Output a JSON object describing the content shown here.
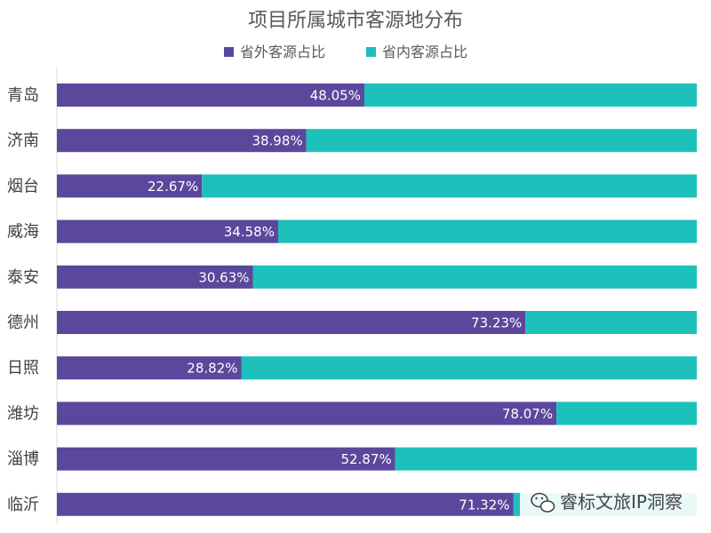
{
  "chart_data": {
    "type": "bar",
    "orientation": "horizontal",
    "stacked": "100%",
    "title": "项目所属城市客源地分布",
    "categories": [
      "青岛",
      "济南",
      "烟台",
      "威海",
      "泰安",
      "德州",
      "日照",
      "潍坊",
      "淄博",
      "临沂"
    ],
    "series": [
      {
        "name": "省外客源占比",
        "values": [
          48.05,
          38.98,
          22.67,
          34.58,
          30.63,
          73.23,
          28.82,
          78.07,
          52.87,
          71.32
        ],
        "labels": [
          "48.05%",
          "38.98%",
          "22.67%",
          "34.58%",
          "30.63%",
          "73.23%",
          "28.82%",
          "78.07%",
          "52.87%",
          "71.32%"
        ],
        "color": "#5b479b"
      },
      {
        "name": "省内客源占比",
        "values": [
          51.95,
          61.02,
          77.33,
          65.42,
          69.37,
          26.77,
          71.18,
          21.93,
          47.13,
          28.68
        ],
        "color": "#1dc0bb"
      }
    ],
    "xlim": [
      0,
      100
    ],
    "grid": false,
    "legend": "top-center"
  },
  "watermark": {
    "text": "睿标文旅IP洞察",
    "icon": "wechat-icon"
  }
}
